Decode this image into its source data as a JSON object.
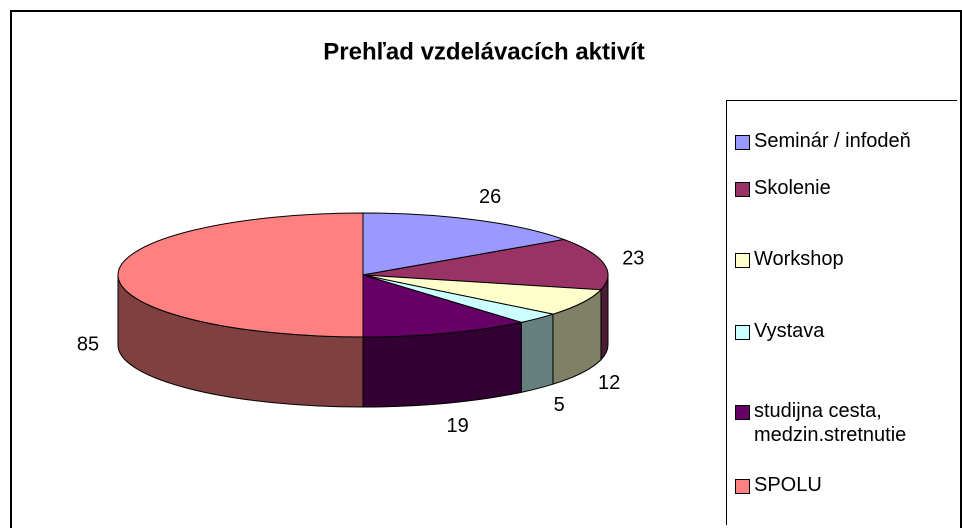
{
  "chart_data": {
    "type": "pie3d",
    "title": "Prehľad vzdelávacích aktivít",
    "categories": [
      "Seminár / infodeň",
      "Skolenie",
      "Workshop",
      "Vystava",
      "studijna cesta, medzin.stretnutie",
      "SPOLU"
    ],
    "values": [
      26,
      23,
      12,
      5,
      19,
      85
    ],
    "colors": [
      "#9999ff",
      "#993366",
      "#ffffcc",
      "#ccffff",
      "#660066",
      "#ff8080"
    ],
    "legend": "right"
  }
}
